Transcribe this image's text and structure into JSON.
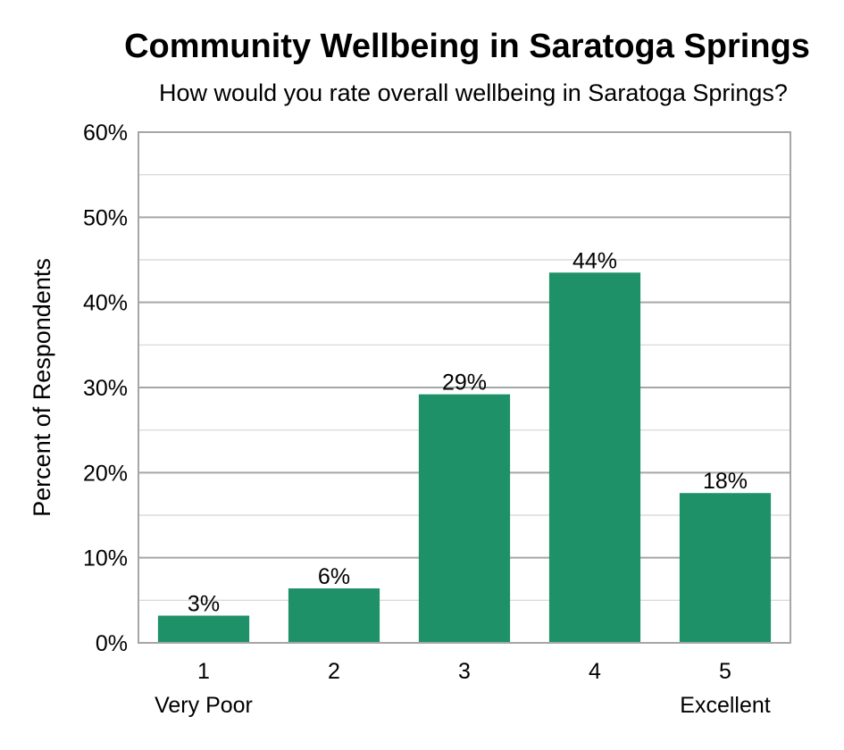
{
  "chart_data": {
    "type": "bar",
    "title": "Community Wellbeing in Saratoga Springs",
    "subtitle": "How would you rate overall wellbeing in Saratoga Springs?",
    "xlabel": "",
    "ylabel": "Percent of Respondents",
    "categories": [
      "1",
      "2",
      "3",
      "4",
      "5"
    ],
    "category_sublabels": [
      "Very Poor",
      "",
      "",
      "",
      "Excellent"
    ],
    "values": [
      3.2,
      6.4,
      29.2,
      43.5,
      17.6
    ],
    "data_labels": [
      "3%",
      "6%",
      "29%",
      "44%",
      "18%"
    ],
    "ylim": [
      0,
      60
    ],
    "yticks": [
      0,
      10,
      20,
      30,
      40,
      50,
      60
    ],
    "ytick_labels": [
      "0%",
      "10%",
      "20%",
      "30%",
      "40%",
      "50%",
      "60%"
    ],
    "grid": true,
    "bar_color": "#1f9168"
  }
}
